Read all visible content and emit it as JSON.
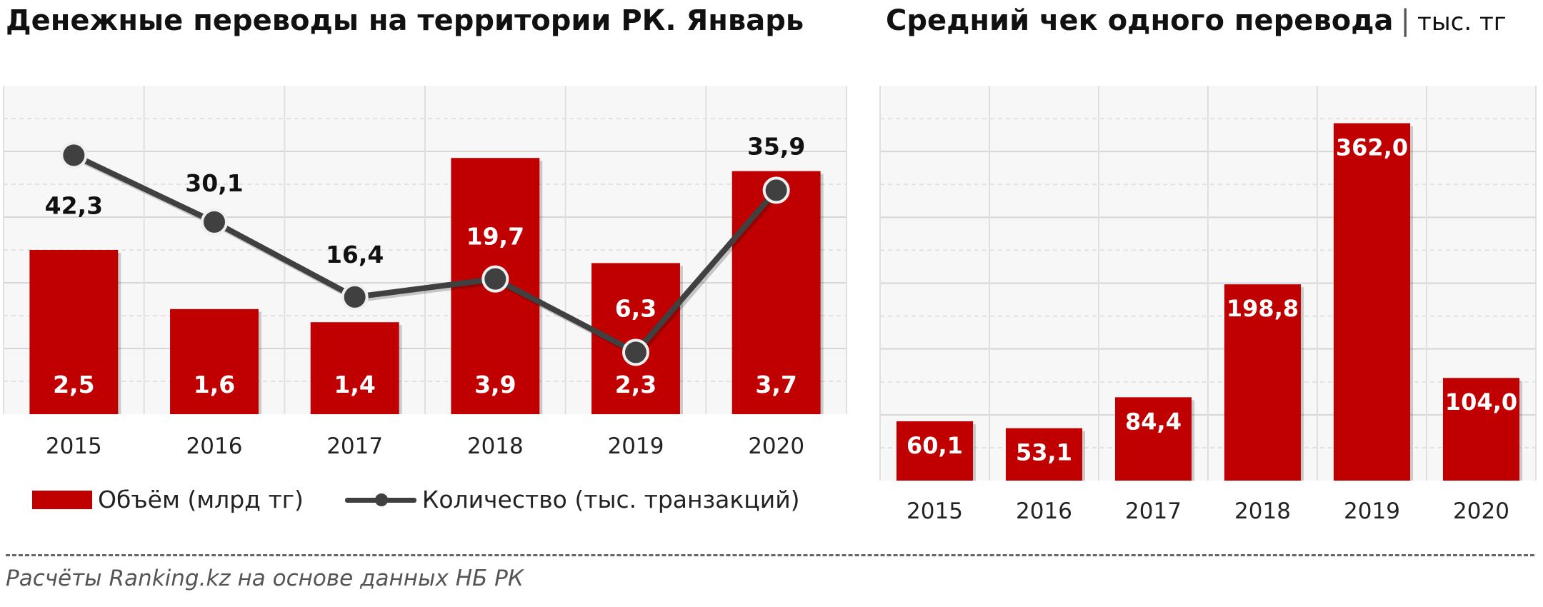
{
  "header": {
    "left_title": "Денежные переводы на территории РК. Январь",
    "right_title": "Средний чек одного перевода",
    "right_separator": "|",
    "right_unit": "тыс. тг"
  },
  "chart_data": [
    {
      "type": "bar+line",
      "title": "Денежные переводы на территории РК. Январь",
      "categories": [
        "2015",
        "2016",
        "2017",
        "2018",
        "2019",
        "2020"
      ],
      "series": [
        {
          "name": "Объём (млрд тг)",
          "type": "bar",
          "values": [
            2.5,
            1.6,
            1.4,
            3.9,
            2.3,
            3.7
          ],
          "labels": [
            "2,5",
            "1,6",
            "1,4",
            "3,9",
            "2,3",
            "3,7"
          ],
          "color": "#c00000"
        },
        {
          "name": "Количество (тыс. транзакций)",
          "type": "line",
          "values": [
            42.3,
            30.1,
            16.4,
            19.7,
            6.3,
            35.9
          ],
          "labels": [
            "42,3",
            "30,1",
            "16,4",
            "19,7",
            "6,3",
            "35,9"
          ],
          "color": "#404040"
        }
      ],
      "bar_ylim": [
        0,
        5
      ],
      "line_ylim": [
        -5,
        55
      ],
      "grid": true,
      "legend_position": "bottom-left"
    },
    {
      "type": "bar",
      "title": "Средний чек одного перевода",
      "unit": "тыс. тг",
      "categories": [
        "2015",
        "2016",
        "2017",
        "2018",
        "2019",
        "2020"
      ],
      "values": [
        60.1,
        53.1,
        84.4,
        198.8,
        362.0,
        104.0
      ],
      "labels": [
        "60,1",
        "53,1",
        "84,4",
        "198,8",
        "362,0",
        "104,0"
      ],
      "ylim": [
        0,
        400
      ],
      "color": "#c00000",
      "grid": true
    }
  ],
  "footer": {
    "source": "Расчёты Ranking.kz на основе данных НБ РК"
  }
}
